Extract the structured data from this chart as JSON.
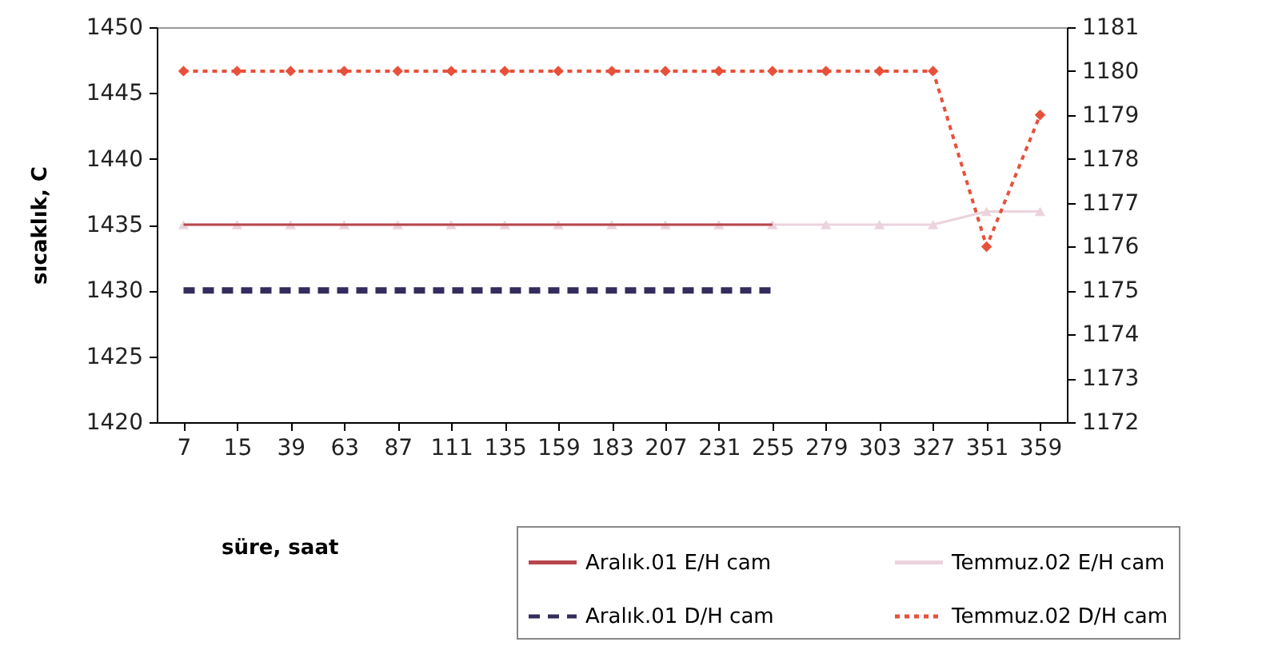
{
  "chart_data": {
    "type": "line",
    "xlabel": "süre, saat",
    "ylabel": "sıcaklık, C",
    "categories": [
      "7",
      "15",
      "39",
      "63",
      "87",
      "111",
      "135",
      "159",
      "183",
      "207",
      "231",
      "255",
      "279",
      "303",
      "327",
      "351",
      "359"
    ],
    "ylim": [
      1420,
      1450
    ],
    "yticks": [
      1420,
      1425,
      1430,
      1435,
      1440,
      1445,
      1450
    ],
    "y2lim": [
      1172,
      1181
    ],
    "y2ticks": [
      1172,
      1173,
      1174,
      1175,
      1176,
      1177,
      1178,
      1179,
      1180,
      1181
    ],
    "grid": false,
    "legend": "bottom right",
    "series": [
      {
        "name": "Aralık.01 E/H cam",
        "color": "#b8474d",
        "line_style": "solid",
        "marker": "none",
        "values": [
          1435,
          1435,
          1435,
          1435,
          1435,
          1435,
          1435,
          1435,
          1435,
          1435,
          1435,
          1435,
          null,
          null,
          null,
          null,
          null
        ]
      },
      {
        "name": "Temmuz.02 E/H cam",
        "color": "#ebd3de",
        "line_style": "solid",
        "marker": "triangle",
        "values": [
          1435,
          1435,
          1435,
          1435,
          1435,
          1435,
          1435,
          1435,
          1435,
          1435,
          1435,
          1435,
          1435,
          1435,
          1435,
          1436,
          1436
        ]
      },
      {
        "name": "Aralık.01 D/H cam",
        "color": "#342c5c",
        "line_style": "dashed",
        "marker": "none",
        "values": [
          1430,
          1430,
          1430,
          1430,
          1430,
          1430,
          1430,
          1430,
          1430,
          1430,
          1430,
          1430,
          null,
          null,
          null,
          null,
          null
        ]
      },
      {
        "name": "Temmuz.02 D/H cam",
        "color": "#e8503a",
        "line_style": "dotted",
        "marker": "diamond",
        "axis": "y2",
        "values": [
          1180,
          1180,
          1180,
          1180,
          1180,
          1180,
          1180,
          1180,
          1180,
          1180,
          1180,
          1180,
          1180,
          1180,
          1180,
          1176,
          1179
        ]
      }
    ]
  }
}
